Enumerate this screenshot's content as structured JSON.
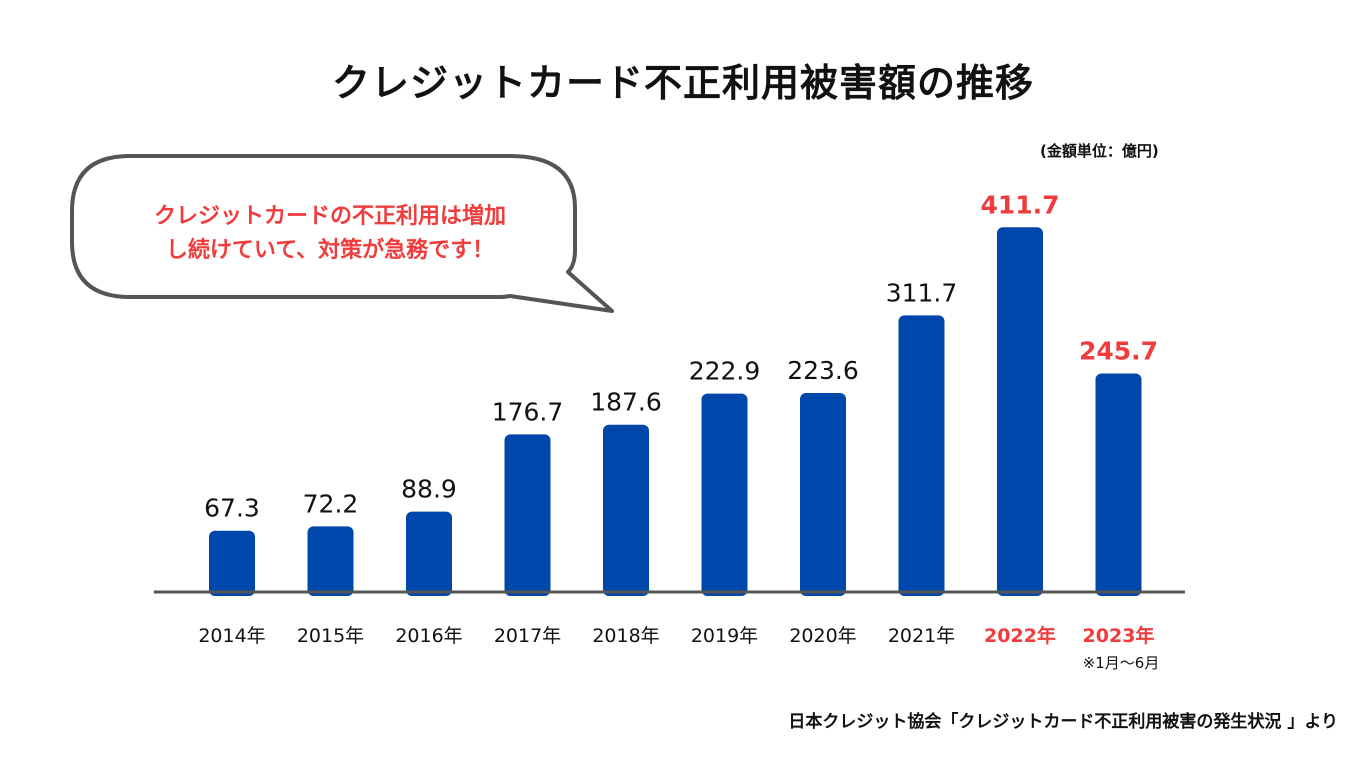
{
  "title": "クレジットカード不正利用被害額の推移",
  "unit_label": "(金額単位：億円)",
  "speech_bubble": {
    "line1": "クレジットカードの不正利用は増加",
    "line2": "し続けていて、対策が急務です！"
  },
  "note": "※1月〜6月",
  "source": "日本クレジット協会「クレジットカード不正利用被害の発生状況 」より",
  "colors": {
    "bar": "#0047ab",
    "highlight_text": "#f03c3c",
    "axis": "#555555",
    "text": "#111111"
  },
  "chart_data": {
    "type": "bar",
    "categories": [
      "2014年",
      "2015年",
      "2016年",
      "2017年",
      "2018年",
      "2019年",
      "2020年",
      "2021年",
      "2022年",
      "2023年"
    ],
    "values": [
      67.3,
      72.2,
      88.9,
      176.7,
      187.6,
      222.9,
      223.6,
      311.7,
      411.7,
      245.7
    ],
    "value_labels": [
      "67.3",
      "72.2",
      "88.9",
      "176.7",
      "187.6",
      "222.9",
      "223.6",
      "311.7",
      "411.7",
      "245.7"
    ],
    "highlighted": [
      false,
      false,
      false,
      false,
      false,
      false,
      false,
      false,
      true,
      true
    ],
    "title": "クレジットカード不正利用被害額の推移",
    "xlabel": "",
    "ylabel": "",
    "grid": false,
    "legend": "none"
  }
}
